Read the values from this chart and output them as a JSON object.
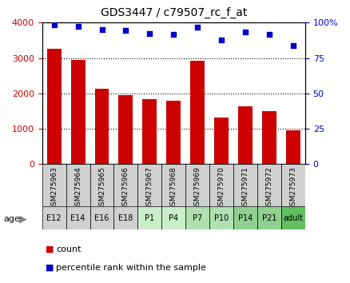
{
  "title": "GDS3447 / c79507_rc_f_at",
  "categories": [
    "GSM275963",
    "GSM275964",
    "GSM275965",
    "GSM275966",
    "GSM275967",
    "GSM275968",
    "GSM275969",
    "GSM275970",
    "GSM275971",
    "GSM275972",
    "GSM275973"
  ],
  "ages": [
    "E12",
    "E14",
    "E16",
    "E18",
    "P1",
    "P4",
    "P7",
    "P10",
    "P14",
    "P21",
    "adult"
  ],
  "counts": [
    3270,
    2950,
    2130,
    1940,
    1840,
    1790,
    2930,
    1310,
    1630,
    1490,
    960
  ],
  "percentiles": [
    98.5,
    97.5,
    95.0,
    94.5,
    92.0,
    91.5,
    97.0,
    88.0,
    93.5,
    91.5,
    84.0
  ],
  "bar_color": "#cc0000",
  "dot_color": "#0000cc",
  "ylim_left": [
    0,
    4000
  ],
  "ylim_right": [
    0,
    100
  ],
  "yticks_left": [
    0,
    1000,
    2000,
    3000,
    4000
  ],
  "yticks_right": [
    0,
    25,
    50,
    75,
    100
  ],
  "age_colors": [
    "#d0d0d0",
    "#d0d0d0",
    "#d0d0d0",
    "#d0d0d0",
    "#c8efc8",
    "#c8efc8",
    "#b0e0b0",
    "#b0e0b0",
    "#90d090",
    "#90d090",
    "#60c060"
  ],
  "gsm_bg_color": "#d0d0d0",
  "legend_count_color": "#cc0000",
  "legend_pct_color": "#0000cc"
}
